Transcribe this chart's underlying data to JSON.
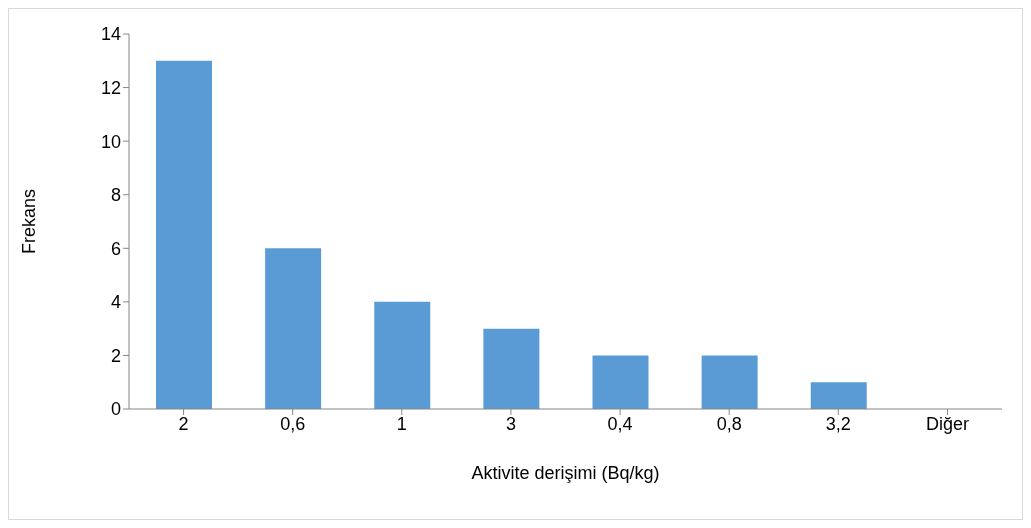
{
  "chart_data": {
    "type": "bar",
    "xlabel": "Aktivite derişimi (Bq/kg)",
    "ylabel": "Frekans",
    "categories": [
      "2",
      "0,6",
      "1",
      "3",
      "0,4",
      "0,8",
      "3,2",
      "Diğer"
    ],
    "values": [
      13,
      6,
      4,
      3,
      2,
      2,
      1,
      0
    ],
    "color": "#5b9bd5",
    "ylim": [
      0,
      14
    ],
    "yticks": [
      0,
      2,
      4,
      6,
      8,
      10,
      12,
      14
    ],
    "grid": false
  }
}
